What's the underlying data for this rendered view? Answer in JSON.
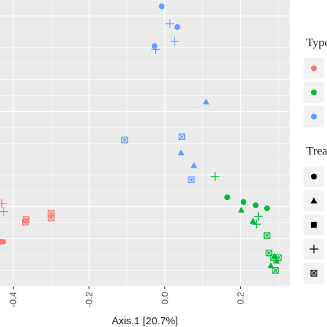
{
  "chart_data": {
    "type": "scatter",
    "xlabel": "Axis.1   [20.7%]",
    "ylabel": "",
    "x_ticks": [
      -0.4,
      -0.2,
      0.0,
      0.2
    ],
    "x_tick_labels": [
      "-0.4",
      "-0.2",
      "0.0",
      "0.2"
    ],
    "xlim": [
      -0.435,
      0.33
    ],
    "ylim": [
      -0.45,
      0.45
    ],
    "legend_placement": "right",
    "legends": [
      {
        "title": "Type",
        "entries": [
          {
            "label": "",
            "color": "#F8766D"
          },
          {
            "label": "",
            "color": "#00BA38"
          },
          {
            "label": "",
            "color": "#619CFF"
          }
        ]
      },
      {
        "title": "Treatment",
        "entries": [
          {
            "label": "",
            "shape": "circle"
          },
          {
            "label": "",
            "shape": "triangle"
          },
          {
            "label": "",
            "shape": "square"
          },
          {
            "label": "",
            "shape": "plus"
          },
          {
            "label": "",
            "shape": "boxed-x"
          }
        ]
      }
    ],
    "series": [
      {
        "color": "#619CFF",
        "points": [
          {
            "x": -0.008,
            "y": 0.43,
            "shape": "circle"
          },
          {
            "x": 0.033,
            "y": 0.365,
            "shape": "circle"
          },
          {
            "x": -0.027,
            "y": 0.305,
            "shape": "circle"
          },
          {
            "x": 0.013,
            "y": 0.375,
            "shape": "plus"
          },
          {
            "x": 0.026,
            "y": 0.32,
            "shape": "plus"
          },
          {
            "x": -0.024,
            "y": 0.295,
            "shape": "plus"
          },
          {
            "x": 0.109,
            "y": 0.13,
            "shape": "triangle"
          },
          {
            "x": 0.043,
            "y": -0.03,
            "shape": "triangle"
          },
          {
            "x": 0.077,
            "y": -0.07,
            "shape": "triangle"
          },
          {
            "x": -0.106,
            "y": 0.01,
            "shape": "boxed-x"
          },
          {
            "x": 0.045,
            "y": 0.02,
            "shape": "boxed-x"
          },
          {
            "x": 0.07,
            "y": -0.115,
            "shape": "boxed-x"
          }
        ]
      },
      {
        "color": "#00BA38",
        "points": [
          {
            "x": 0.165,
            "y": -0.17,
            "shape": "circle"
          },
          {
            "x": 0.208,
            "y": -0.185,
            "shape": "circle"
          },
          {
            "x": 0.24,
            "y": -0.195,
            "shape": "circle"
          },
          {
            "x": 0.27,
            "y": -0.205,
            "shape": "circle"
          },
          {
            "x": 0.202,
            "y": -0.21,
            "shape": "triangle"
          },
          {
            "x": 0.233,
            "y": -0.245,
            "shape": "triangle"
          },
          {
            "x": 0.29,
            "y": -0.355,
            "shape": "triangle"
          },
          {
            "x": 0.295,
            "y": -0.37,
            "shape": "triangle"
          },
          {
            "x": 0.28,
            "y": -0.385,
            "shape": "triangle"
          },
          {
            "x": 0.133,
            "y": -0.105,
            "shape": "plus"
          },
          {
            "x": 0.247,
            "y": -0.23,
            "shape": "plus"
          },
          {
            "x": 0.242,
            "y": -0.255,
            "shape": "plus"
          },
          {
            "x": 0.27,
            "y": -0.29,
            "shape": "boxed-x"
          },
          {
            "x": 0.275,
            "y": -0.345,
            "shape": "boxed-x"
          },
          {
            "x": 0.287,
            "y": -0.36,
            "shape": "boxed-x"
          },
          {
            "x": 0.3,
            "y": -0.36,
            "shape": "boxed-x"
          },
          {
            "x": 0.292,
            "y": -0.4,
            "shape": "boxed-x"
          }
        ]
      },
      {
        "color": "#F8766D",
        "points": [
          {
            "x": -0.43,
            "y": -0.19,
            "shape": "plus"
          },
          {
            "x": -0.425,
            "y": -0.215,
            "shape": "plus"
          },
          {
            "x": -0.434,
            "y": -0.31,
            "shape": "circle"
          },
          {
            "x": -0.427,
            "y": -0.31,
            "shape": "circle"
          },
          {
            "x": -0.366,
            "y": -0.24,
            "shape": "boxed-x"
          },
          {
            "x": -0.368,
            "y": -0.248,
            "shape": "boxed-x"
          },
          {
            "x": -0.3,
            "y": -0.22,
            "shape": "boxed-x"
          },
          {
            "x": -0.3,
            "y": -0.235,
            "shape": "boxed-x"
          }
        ]
      }
    ]
  }
}
